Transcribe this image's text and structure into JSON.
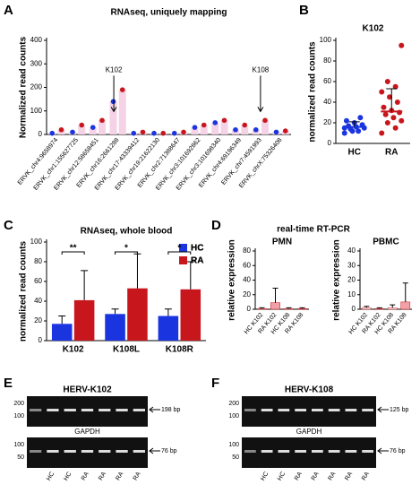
{
  "panels": [
    "A",
    "B",
    "C",
    "D",
    "E",
    "F"
  ],
  "chart_data": [
    {
      "type": "dot",
      "title": "RNAseq, uniquely mapping",
      "ylabel": "Normalized read counts",
      "categories": [
        "ERVK_chr4:9658974",
        "ERVK_chr1:155627725",
        "ERVK_chr12:58658451",
        "ERVK_chr16:2661288",
        "ERVK_chr17:43339412",
        "ERVK_chr19:21622130",
        "ERVK_chr2:71388647",
        "ERVK_chr3:101692862",
        "ERVK_chr3:101698340",
        "ERVK_chr4:69196349",
        "ERVK_chr7:4591993",
        "ERVK_chrX:75326408"
      ],
      "series": [
        {
          "color": "#1a35e0",
          "values": [
            5,
            10,
            30,
            140,
            5,
            5,
            5,
            30,
            50,
            20,
            20,
            10
          ]
        },
        {
          "color": "#c8161d",
          "values": [
            20,
            40,
            60,
            190,
            10,
            5,
            10,
            40,
            60,
            40,
            60,
            15
          ]
        }
      ],
      "annotations": [
        "K102",
        "K108"
      ],
      "ylim": [
        0,
        400
      ],
      "yticks": [
        0,
        100,
        200,
        300,
        400
      ]
    },
    {
      "type": "dot",
      "title": "K102",
      "ylabel": "normalized read counts",
      "categories": [
        "HC",
        "RA"
      ],
      "values": [
        16,
        31
      ],
      "errors": [
        5,
        22
      ],
      "colors": [
        "#1a35e0",
        "#c8161d"
      ],
      "points": [
        [
          10,
          12,
          14,
          15,
          16,
          17,
          18,
          20,
          22,
          25,
          12,
          15
        ],
        [
          10,
          15,
          20,
          22,
          25,
          28,
          30,
          32,
          35,
          40,
          45,
          50,
          55,
          60,
          95
        ]
      ],
      "ylim": [
        0,
        100
      ],
      "yticks": [
        0,
        20,
        40,
        60,
        80,
        100
      ]
    },
    {
      "type": "bar",
      "title": "RNAseq, whole blood",
      "ylabel": "normalized read counts",
      "categories": [
        "K102",
        "K108L",
        "K108R"
      ],
      "series": [
        {
          "name": "HC",
          "color": "#1a35e0",
          "values": [
            17,
            27,
            25
          ],
          "errors": [
            8,
            5,
            7
          ]
        },
        {
          "name": "RA",
          "color": "#c8161d",
          "values": [
            41,
            53,
            52
          ],
          "errors": [
            30,
            35,
            28
          ]
        }
      ],
      "significance": [
        "**",
        "*",
        "*"
      ],
      "ylim": [
        0,
        100
      ],
      "yticks": [
        0,
        20,
        40,
        60,
        80,
        100
      ]
    },
    {
      "type": "bar",
      "suptitle": "real-time RT-PCR",
      "title": "PMN",
      "ylabel": "relative expression",
      "categories": [
        "HC K102",
        "RA K102",
        "HC K108",
        "RA K108"
      ],
      "values": [
        1,
        9,
        1,
        1
      ],
      "errors": [
        1,
        20,
        1,
        1
      ],
      "colors": [
        "#ffffff",
        "#f2a0a8",
        "#ffffff",
        "#f2a0a8"
      ],
      "ylim": [
        0,
        80
      ],
      "yticks": [
        0,
        20,
        40,
        60,
        80
      ]
    },
    {
      "type": "bar",
      "title": "PBMC",
      "ylabel": "relative expression",
      "categories": [
        "HC K102",
        "RA K102",
        "HC K108",
        "RA K108"
      ],
      "values": [
        1,
        0.5,
        1,
        5
      ],
      "errors": [
        1,
        0.5,
        2,
        13
      ],
      "colors": [
        "#ffffff",
        "#f2a0a8",
        "#ffffff",
        "#f2a0a8"
      ],
      "ylim": [
        0,
        40
      ],
      "yticks": [
        0,
        10,
        20,
        30,
        40
      ]
    }
  ],
  "gels": [
    {
      "title": "HERV-K102",
      "markers_top": [
        "200",
        "100"
      ],
      "band_top": "198 bp",
      "subtitle": "GAPDH",
      "markers_bottom": [
        "100",
        "50"
      ],
      "band_bottom": "76 bp",
      "lanes": [
        "HC",
        "HC",
        "RA",
        "RA",
        "RA",
        "RA"
      ]
    },
    {
      "title": "HERV-K108",
      "markers_top": [
        "200",
        "100"
      ],
      "band_top": "125 bp",
      "subtitle": "GAPDH",
      "markers_bottom": [
        "100",
        "50"
      ],
      "band_bottom": "76 bp",
      "lanes": [
        "HC",
        "HC",
        "RA",
        "RA",
        "RA",
        "RA",
        "RA"
      ]
    }
  ]
}
